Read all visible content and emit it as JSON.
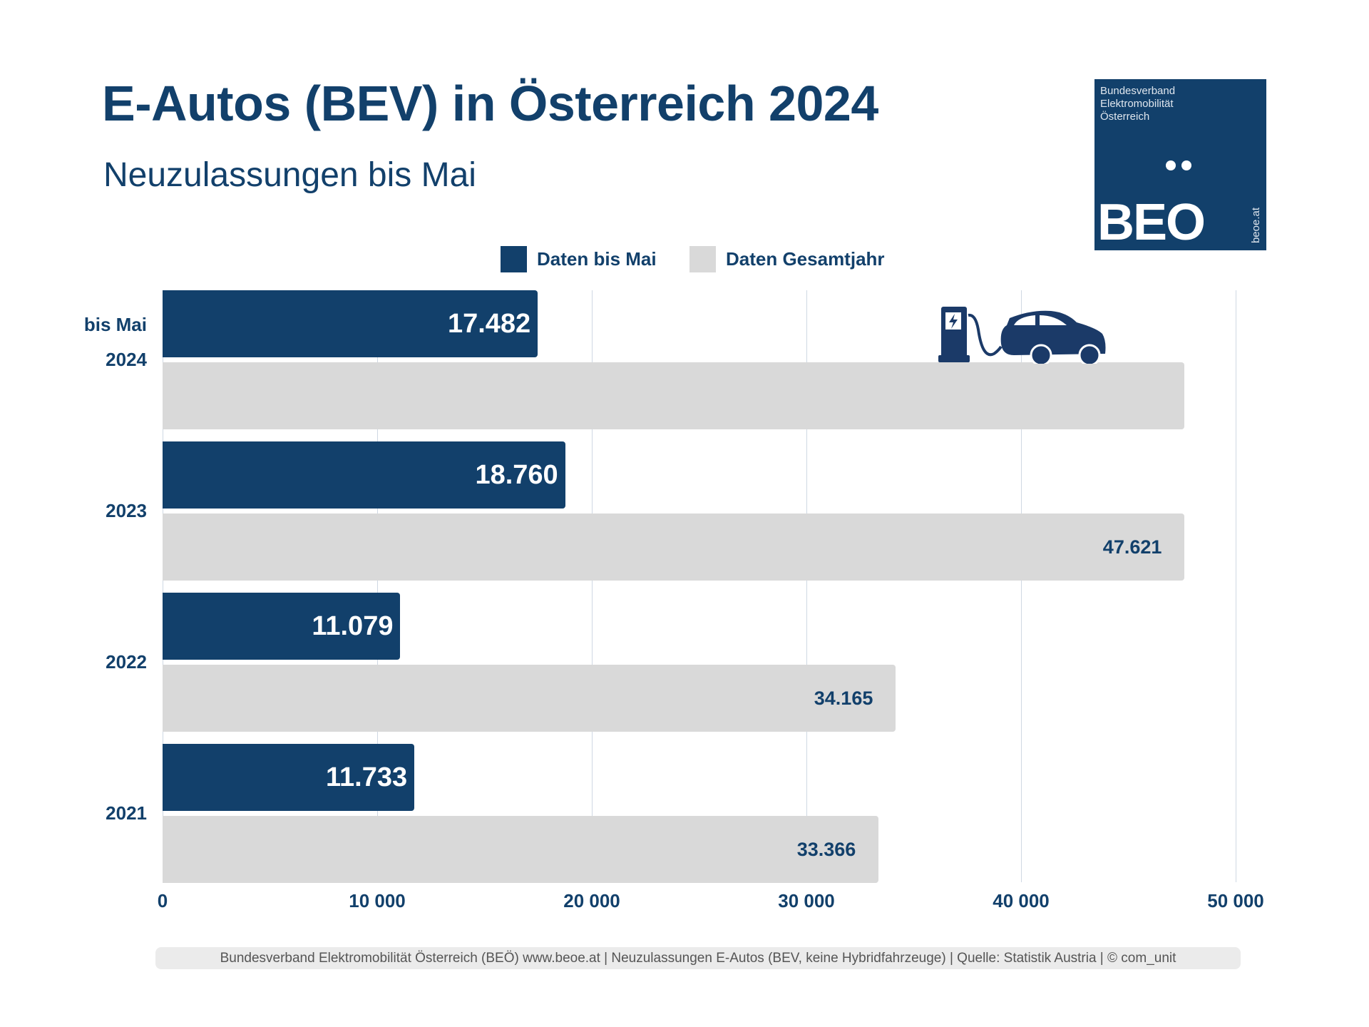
{
  "header": {
    "title": "E-Autos (BEV) in Österreich 2024",
    "subtitle": "Neuzulassungen bis Mai"
  },
  "logo": {
    "org_lines": [
      "Bundesverband",
      "Elektromobilität",
      "Österreich"
    ],
    "wordmark": "BEO",
    "url": "beoe.at"
  },
  "chart_data": {
    "type": "bar",
    "orientation": "horizontal",
    "title": "E-Autos (BEV) in Österreich 2024",
    "subtitle": "Neuzulassungen bis Mai",
    "categories": [
      "2024",
      "2023",
      "2022",
      "2021"
    ],
    "category_note": "bis Mai",
    "series": [
      {
        "name": "Daten bis Mai",
        "color": "#12406b",
        "values": [
          17482,
          18760,
          11079,
          11733
        ],
        "labels": [
          "17.482",
          "18.760",
          "11.079",
          "11.733"
        ]
      },
      {
        "name": "Daten Gesamtjahr",
        "color": "#d9d9d9",
        "values": [
          47621,
          47621,
          34165,
          33366
        ],
        "labels": [
          null,
          "47.621",
          "34.165",
          "33.366"
        ]
      }
    ],
    "xlim": [
      0,
      50000
    ],
    "xticks": [
      0,
      10000,
      20000,
      30000,
      40000,
      50000
    ],
    "xtick_labels": [
      "0",
      "10 000",
      "20 000",
      "30 000",
      "40 000",
      "50 000"
    ],
    "grid": true,
    "legend_position": "top-center",
    "xlabel": "",
    "ylabel": ""
  },
  "footer": "Bundesverband Elektromobilität Österreich (BEÖ) www.beoe.at | Neuzulassungen E-Autos (BEV, keine Hybridfahrzeuge) | Quelle: Statistik Austria | © com_unit"
}
